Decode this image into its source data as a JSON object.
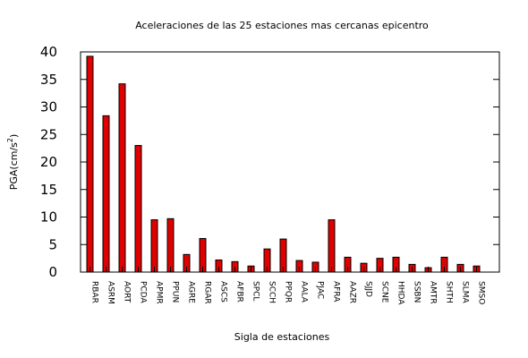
{
  "chart_data": {
    "type": "bar",
    "title": "Aceleraciones de las 25 estaciones mas cercanas epicentro",
    "xlabel": "Sigla de estaciones",
    "ylabel": "PGA(cm/s",
    "ylabel_superscript": "2",
    "ylabel_suffix": ")",
    "ylim": [
      0,
      40
    ],
    "yticks": [
      "0",
      "5",
      "10",
      "15",
      "20",
      "25",
      "30",
      "35",
      "40"
    ],
    "grid": false,
    "legend": "none",
    "bar_color": "#e00000",
    "categories": [
      "RBAR",
      "ASRM",
      "AORT",
      "PCDA",
      "APMR",
      "PPUN",
      "AGRE",
      "RGAR",
      "ASCS",
      "AFBR",
      "SPCL",
      "SCCH",
      "PPQR",
      "AALA",
      "PJAC",
      "AFRA",
      "AAZR",
      "SJJD",
      "SCNE",
      "HHDA",
      "SSBN",
      "AMTR",
      "SHTH",
      "SLMA",
      "SMSO"
    ],
    "values": [
      39.2,
      28.4,
      34.2,
      23.0,
      9.5,
      9.7,
      3.2,
      6.1,
      2.2,
      1.9,
      1.1,
      4.2,
      6.0,
      2.1,
      1.8,
      9.5,
      2.7,
      1.6,
      2.5,
      2.7,
      1.4,
      0.8,
      2.7,
      1.4,
      1.1
    ]
  }
}
